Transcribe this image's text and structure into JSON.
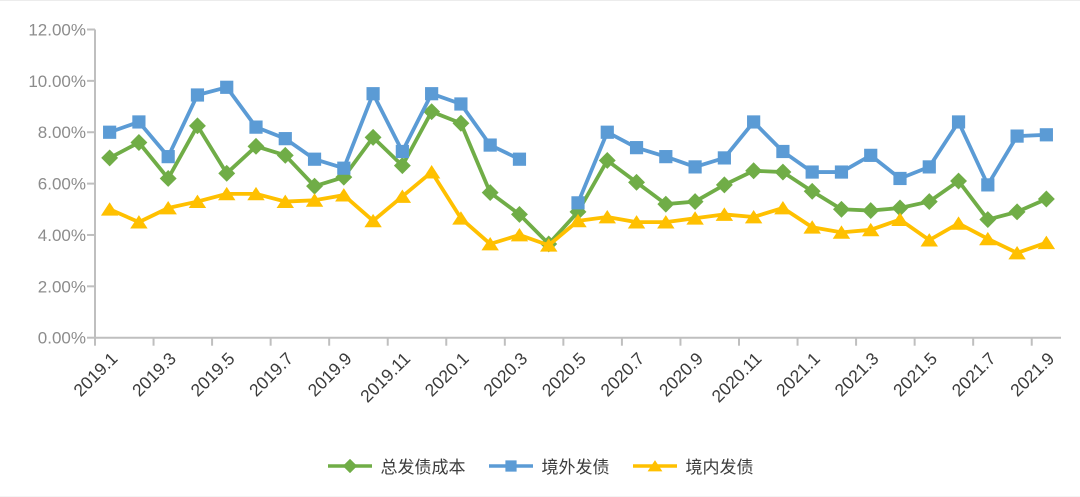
{
  "chart_data": {
    "type": "line",
    "grid": false,
    "legend_position": "bottom",
    "x_categories": [
      "2019.1",
      "2019.2",
      "2019.3",
      "2019.4",
      "2019.5",
      "2019.6",
      "2019.7",
      "2019.8",
      "2019.9",
      "2019.10",
      "2019.11",
      "2019.12",
      "2020.1",
      "2020.2",
      "2020.3",
      "2020.4",
      "2020.5",
      "2020.6",
      "2020.7",
      "2020.8",
      "2020.9",
      "2020.10",
      "2020.11",
      "2020.12",
      "2021.1",
      "2021.2",
      "2021.3",
      "2021.4",
      "2021.5",
      "2021.6",
      "2021.7",
      "2021.8",
      "2021.9"
    ],
    "x_tick_labels": [
      "2019.1",
      "2019.3",
      "2019.5",
      "2019.7",
      "2019.9",
      "2019.11",
      "2020.1",
      "2020.3",
      "2020.5",
      "2020.7",
      "2020.9",
      "2020.11",
      "2021.1",
      "2021.3",
      "2021.5",
      "2021.7",
      "2021.9"
    ],
    "y_axis": {
      "min": 0,
      "max": 12,
      "step": 2,
      "unit": "percent",
      "tick_labels": [
        "0.00%",
        "2.00%",
        "4.00%",
        "6.00%",
        "8.00%",
        "10.00%",
        "12.00%"
      ]
    },
    "series": [
      {
        "name": "总发债成本",
        "marker": "diamond",
        "color": "#70AD47",
        "values": [
          7.0,
          7.6,
          6.2,
          8.25,
          6.4,
          7.45,
          7.1,
          5.9,
          6.25,
          7.8,
          6.7,
          8.8,
          8.35,
          5.65,
          4.8,
          3.65,
          4.9,
          6.9,
          6.05,
          5.2,
          5.3,
          5.95,
          6.5,
          6.45,
          5.7,
          5.0,
          4.95,
          5.05,
          5.3,
          6.1,
          4.6,
          4.9,
          5.4
        ]
      },
      {
        "name": "境外发债",
        "marker": "square",
        "color": "#5B9BD5",
        "values": [
          8.0,
          8.4,
          7.05,
          9.45,
          9.75,
          8.2,
          7.75,
          6.95,
          6.6,
          9.5,
          7.25,
          9.5,
          9.1,
          7.5,
          6.95,
          null,
          5.25,
          8.0,
          7.4,
          7.05,
          6.65,
          7.0,
          8.4,
          7.25,
          6.45,
          6.45,
          7.1,
          6.2,
          6.65,
          8.4,
          5.95,
          7.85,
          7.9
        ]
      },
      {
        "name": "境内发债",
        "marker": "triangle",
        "color": "#FFC000",
        "values": [
          5.0,
          4.5,
          5.05,
          5.3,
          5.6,
          5.6,
          5.3,
          5.35,
          5.55,
          4.55,
          5.5,
          6.45,
          4.65,
          3.65,
          4.0,
          3.6,
          4.55,
          4.7,
          4.5,
          4.5,
          4.65,
          4.8,
          4.7,
          5.05,
          4.3,
          4.1,
          4.2,
          4.6,
          3.8,
          4.45,
          3.85,
          3.3,
          3.7
        ]
      }
    ],
    "colors": {
      "axis": "#BFBFBF",
      "y_label": "#8C8C8C",
      "x_label": "#3B3B3B",
      "legend_text": "#3D3D3D"
    }
  }
}
